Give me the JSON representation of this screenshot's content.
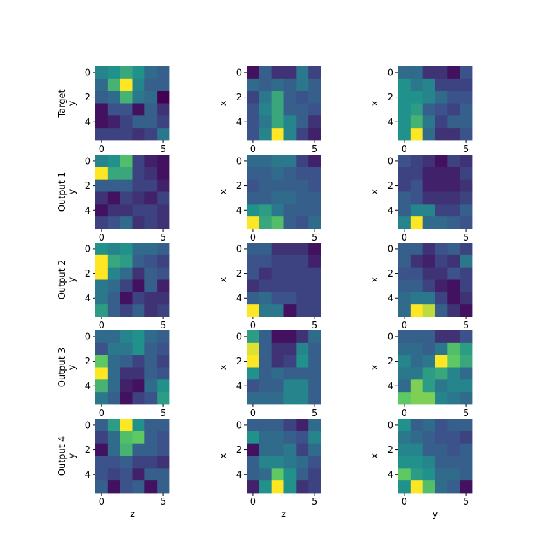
{
  "chart_data": {
    "type": "heatmap",
    "colormap": "viridis",
    "value_range": [
      0,
      1
    ],
    "x_ticks": [
      0,
      5
    ],
    "y_ticks": [
      0,
      2,
      4
    ],
    "row_labels": [
      "Target",
      "Output 1",
      "Output 2",
      "Output 3",
      "Output 4"
    ],
    "column_ylabels": [
      "y",
      "x",
      "x"
    ],
    "column_xlabels": [
      "z",
      "z",
      "y"
    ],
    "panels": [
      [
        {
          "values": [
            [
              0.45,
              0.5,
              0.6,
              0.5,
              0.35,
              0.3
            ],
            [
              0.35,
              0.65,
              1.0,
              0.45,
              0.3,
              0.3
            ],
            [
              0.3,
              0.35,
              0.65,
              0.4,
              0.35,
              0.0
            ],
            [
              0.05,
              0.25,
              0.25,
              0.05,
              0.3,
              0.15
            ],
            [
              0.05,
              0.1,
              0.2,
              0.3,
              0.3,
              0.2
            ],
            [
              0.2,
              0.2,
              0.2,
              0.15,
              0.2,
              0.4
            ]
          ]
        },
        {
          "values": [
            [
              0.05,
              0.3,
              0.15,
              0.15,
              0.4,
              0.2
            ],
            [
              0.35,
              0.3,
              0.35,
              0.3,
              0.4,
              0.3
            ],
            [
              0.2,
              0.4,
              0.6,
              0.3,
              0.25,
              0.3
            ],
            [
              0.25,
              0.45,
              0.6,
              0.3,
              0.3,
              0.25
            ],
            [
              0.25,
              0.4,
              0.6,
              0.45,
              0.3,
              0.15
            ],
            [
              0.25,
              0.45,
              1.0,
              0.45,
              0.2,
              0.1
            ]
          ]
        },
        {
          "values": [
            [
              0.35,
              0.35,
              0.15,
              0.15,
              0.05,
              0.25
            ],
            [
              0.5,
              0.4,
              0.45,
              0.2,
              0.2,
              0.2
            ],
            [
              0.5,
              0.5,
              0.45,
              0.35,
              0.25,
              0.25
            ],
            [
              0.5,
              0.55,
              0.3,
              0.25,
              0.2,
              0.3
            ],
            [
              0.5,
              0.65,
              0.4,
              0.2,
              0.3,
              0.3
            ],
            [
              0.5,
              1.0,
              0.35,
              0.15,
              0.15,
              0.25
            ]
          ]
        }
      ],
      [
        {
          "values": [
            [
              0.45,
              0.5,
              0.7,
              0.2,
              0.1,
              0.05
            ],
            [
              1.0,
              0.6,
              0.6,
              0.2,
              0.15,
              0.05
            ],
            [
              0.3,
              0.3,
              0.3,
              0.2,
              0.2,
              0.1
            ],
            [
              0.15,
              0.05,
              0.2,
              0.15,
              0.1,
              0.2
            ],
            [
              0.05,
              0.15,
              0.15,
              0.2,
              0.2,
              0.15
            ],
            [
              0.2,
              0.25,
              0.35,
              0.15,
              0.2,
              0.15
            ]
          ]
        },
        {
          "values": [
            [
              0.35,
              0.35,
              0.4,
              0.4,
              0.2,
              0.1
            ],
            [
              0.3,
              0.3,
              0.35,
              0.3,
              0.25,
              0.25
            ],
            [
              0.25,
              0.3,
              0.3,
              0.3,
              0.3,
              0.25
            ],
            [
              0.3,
              0.3,
              0.35,
              0.35,
              0.3,
              0.3
            ],
            [
              0.5,
              0.55,
              0.4,
              0.3,
              0.3,
              0.3
            ],
            [
              1.0,
              0.6,
              0.7,
              0.3,
              0.25,
              0.35
            ]
          ]
        },
        {
          "values": [
            [
              0.25,
              0.2,
              0.15,
              0.05,
              0.2,
              0.15
            ],
            [
              0.2,
              0.2,
              0.1,
              0.1,
              0.1,
              0.2
            ],
            [
              0.2,
              0.25,
              0.1,
              0.1,
              0.1,
              0.15
            ],
            [
              0.3,
              0.25,
              0.15,
              0.15,
              0.15,
              0.2
            ],
            [
              0.3,
              0.45,
              0.45,
              0.2,
              0.2,
              0.3
            ],
            [
              0.45,
              1.0,
              0.35,
              0.35,
              0.3,
              0.25
            ]
          ]
        }
      ],
      [
        {
          "values": [
            [
              0.5,
              0.45,
              0.5,
              0.35,
              0.35,
              0.3
            ],
            [
              1.0,
              0.6,
              0.55,
              0.3,
              0.25,
              0.2
            ],
            [
              1.0,
              0.45,
              0.35,
              0.15,
              0.3,
              0.25
            ],
            [
              0.4,
              0.35,
              0.2,
              0.05,
              0.3,
              0.1
            ],
            [
              0.4,
              0.3,
              0.05,
              0.2,
              0.15,
              0.15
            ],
            [
              0.55,
              0.3,
              0.2,
              0.3,
              0.15,
              0.2
            ]
          ]
        },
        {
          "values": [
            [
              0.3,
              0.3,
              0.15,
              0.15,
              0.15,
              0.05
            ],
            [
              0.25,
              0.25,
              0.2,
              0.2,
              0.2,
              0.1
            ],
            [
              0.25,
              0.15,
              0.2,
              0.2,
              0.2,
              0.2
            ],
            [
              0.15,
              0.2,
              0.2,
              0.2,
              0.2,
              0.2
            ],
            [
              0.3,
              0.35,
              0.25,
              0.25,
              0.2,
              0.2
            ],
            [
              1.0,
              0.4,
              0.4,
              0.05,
              0.2,
              0.2
            ]
          ]
        },
        {
          "values": [
            [
              0.3,
              0.3,
              0.15,
              0.25,
              0.3,
              0.2
            ],
            [
              0.3,
              0.15,
              0.1,
              0.2,
              0.15,
              0.4
            ],
            [
              0.25,
              0.25,
              0.15,
              0.15,
              0.25,
              0.2
            ],
            [
              0.3,
              0.3,
              0.2,
              0.1,
              0.05,
              0.2
            ],
            [
              0.35,
              0.4,
              0.4,
              0.2,
              0.05,
              0.15
            ],
            [
              0.35,
              1.0,
              0.9,
              0.3,
              0.15,
              0.05
            ]
          ]
        }
      ],
      [
        {
          "values": [
            [
              0.35,
              0.35,
              0.45,
              0.5,
              0.35,
              0.3
            ],
            [
              0.25,
              0.4,
              0.4,
              0.5,
              0.3,
              0.25
            ],
            [
              0.75,
              0.35,
              0.3,
              0.2,
              0.3,
              0.2
            ],
            [
              1.0,
              0.35,
              0.15,
              0.15,
              0.3,
              0.25
            ],
            [
              0.65,
              0.35,
              0.1,
              0.05,
              0.35,
              0.5
            ],
            [
              0.4,
              0.3,
              0.05,
              0.2,
              0.25,
              0.55
            ]
          ]
        },
        {
          "values": [
            [
              0.55,
              0.3,
              0.05,
              0.05,
              0.15,
              0.35
            ],
            [
              0.95,
              0.3,
              0.15,
              0.15,
              0.45,
              0.3
            ],
            [
              1.0,
              0.3,
              0.15,
              0.2,
              0.5,
              0.3
            ],
            [
              0.5,
              0.3,
              0.35,
              0.3,
              0.3,
              0.3
            ],
            [
              0.25,
              0.3,
              0.3,
              0.45,
              0.45,
              0.3
            ],
            [
              0.35,
              0.35,
              0.35,
              0.45,
              0.45,
              0.3
            ]
          ]
        },
        {
          "values": [
            [
              0.3,
              0.3,
              0.3,
              0.15,
              0.15,
              0.25
            ],
            [
              0.35,
              0.35,
              0.3,
              0.4,
              0.7,
              0.55
            ],
            [
              0.45,
              0.35,
              0.4,
              1.0,
              0.75,
              0.6
            ],
            [
              0.4,
              0.4,
              0.55,
              0.6,
              0.45,
              0.35
            ],
            [
              0.35,
              0.8,
              0.55,
              0.4,
              0.45,
              0.45
            ],
            [
              0.75,
              0.8,
              0.8,
              0.45,
              0.4,
              0.35
            ]
          ]
        }
      ],
      [
        {
          "values": [
            [
              0.3,
              0.55,
              1.0,
              0.5,
              0.3,
              0.3
            ],
            [
              0.2,
              0.35,
              0.7,
              0.75,
              0.3,
              0.25
            ],
            [
              0.05,
              0.35,
              0.65,
              0.3,
              0.3,
              0.25
            ],
            [
              0.25,
              0.25,
              0.3,
              0.2,
              0.2,
              0.15
            ],
            [
              0.25,
              0.2,
              0.25,
              0.1,
              0.3,
              0.3
            ],
            [
              0.3,
              0.05,
              0.25,
              0.3,
              0.05,
              0.3
            ]
          ]
        },
        {
          "values": [
            [
              0.3,
              0.3,
              0.3,
              0.2,
              0.1,
              0.35
            ],
            [
              0.5,
              0.35,
              0.35,
              0.3,
              0.25,
              0.45
            ],
            [
              0.05,
              0.35,
              0.35,
              0.4,
              0.2,
              0.35
            ],
            [
              0.3,
              0.45,
              0.45,
              0.4,
              0.35,
              0.25
            ],
            [
              0.3,
              0.35,
              0.75,
              0.5,
              0.3,
              0.2
            ],
            [
              0.1,
              0.5,
              1.0,
              0.5,
              0.15,
              0.2
            ]
          ]
        },
        {
          "values": [
            [
              0.5,
              0.3,
              0.35,
              0.25,
              0.3,
              0.3
            ],
            [
              0.4,
              0.35,
              0.3,
              0.25,
              0.25,
              0.2
            ],
            [
              0.45,
              0.45,
              0.3,
              0.3,
              0.25,
              0.3
            ],
            [
              0.5,
              0.5,
              0.45,
              0.3,
              0.3,
              0.3
            ],
            [
              0.75,
              0.55,
              0.5,
              0.35,
              0.35,
              0.3
            ],
            [
              0.5,
              1.0,
              0.7,
              0.35,
              0.3,
              0.05
            ]
          ]
        }
      ]
    ]
  }
}
